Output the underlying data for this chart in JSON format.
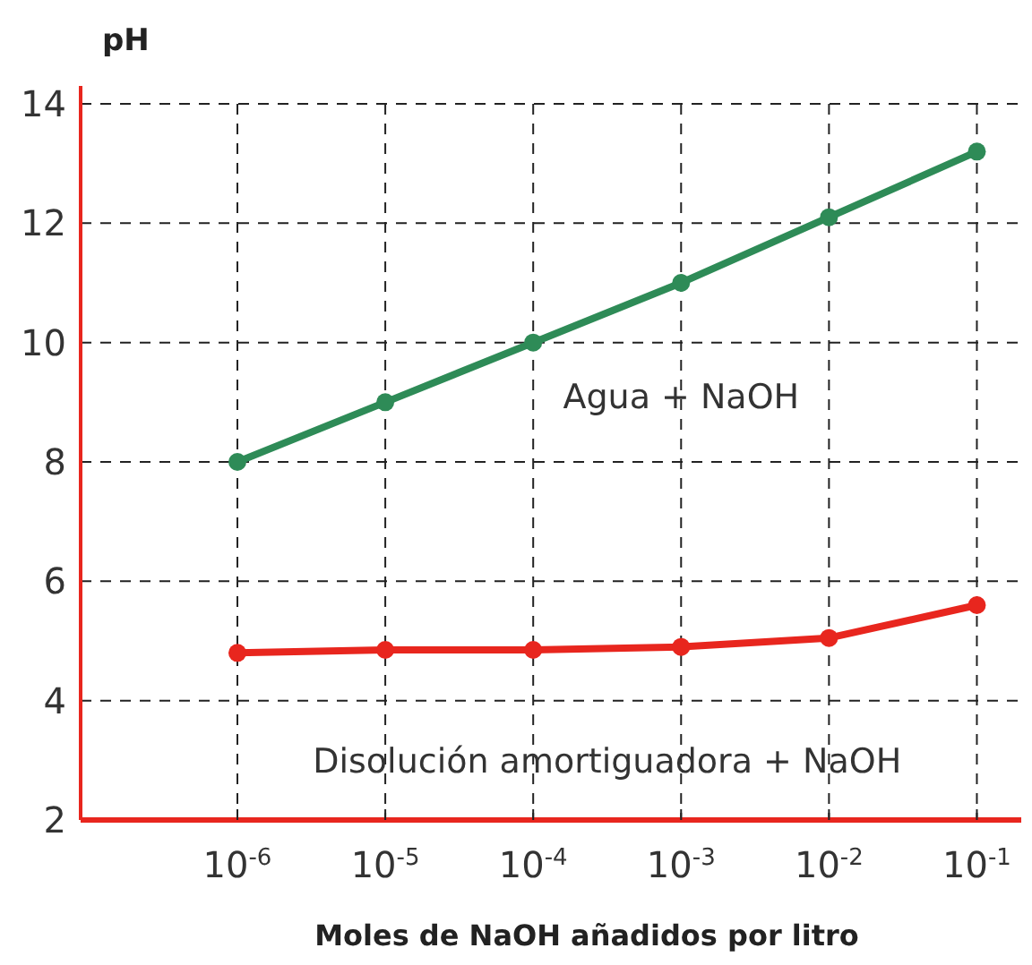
{
  "chart_data": {
    "type": "line",
    "ylabel": "pH",
    "xlabel": "Moles de NaOH añadidos por litro",
    "categories": [
      "10$^{-6}$",
      "10$^{-5}$",
      "10$^{-4}$",
      "10$^{-3}$",
      "10$^{-2}$",
      "10$^{-1}$"
    ],
    "series": [
      {
        "name": "Agua + NaOH",
        "color": "#2e8b57",
        "values": [
          8,
          9,
          10,
          11,
          12.1,
          13.2
        ]
      },
      {
        "name": "Disolución amortiguadora + NaOH",
        "color": "#e8261e",
        "values": [
          4.8,
          4.85,
          4.85,
          4.9,
          5.05,
          5.6
        ]
      }
    ],
    "ylim": [
      2,
      14
    ],
    "yticks": [
      2,
      4,
      6,
      8,
      10,
      12,
      14
    ],
    "grid": true,
    "marker": "circle",
    "line_style": "solid"
  }
}
